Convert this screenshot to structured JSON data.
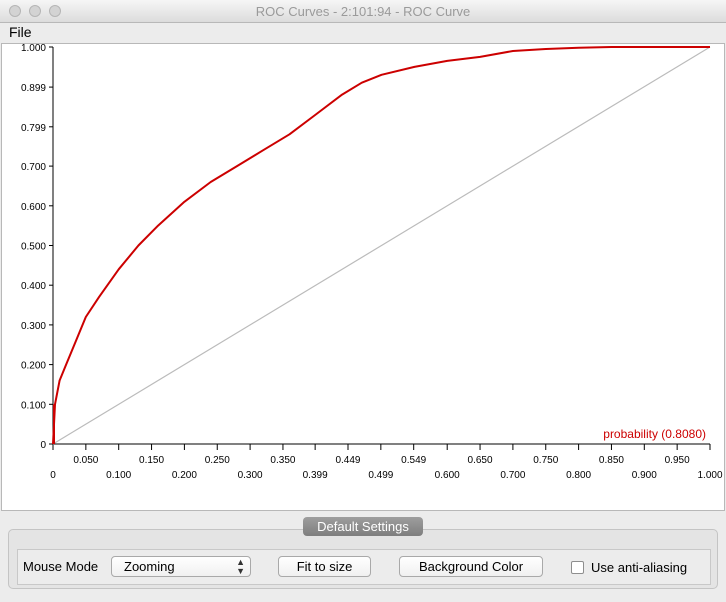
{
  "window": {
    "title": "ROC Curves - 2:101:94 - ROC Curve"
  },
  "menu": {
    "file": "File"
  },
  "chart_data": {
    "type": "line",
    "xlim": [
      0,
      1
    ],
    "ylim": [
      0,
      1
    ],
    "x_ticks": [
      "0",
      "0.050",
      "0.100",
      "0.150",
      "0.200",
      "0.250",
      "0.300",
      "0.350",
      "0.399",
      "0.449",
      "0.499",
      "0.549",
      "0.600",
      "0.650",
      "0.700",
      "0.750",
      "0.800",
      "0.850",
      "0.900",
      "0.950",
      "1.000"
    ],
    "y_ticks": [
      "0",
      "0.100",
      "0.200",
      "0.300",
      "0.400",
      "0.500",
      "0.600",
      "0.700",
      "0.799",
      "0.899",
      "1.000"
    ],
    "series": [
      {
        "name": "probability (0.8080)",
        "color": "#cc0000",
        "x": [
          0,
          0.003,
          0.01,
          0.02,
          0.035,
          0.05,
          0.07,
          0.1,
          0.13,
          0.16,
          0.2,
          0.24,
          0.28,
          0.32,
          0.36,
          0.4,
          0.44,
          0.47,
          0.5,
          0.55,
          0.6,
          0.65,
          0.7,
          0.75,
          0.8,
          0.85,
          0.9,
          0.95,
          1.0
        ],
        "y": [
          0,
          0.1,
          0.16,
          0.2,
          0.26,
          0.32,
          0.37,
          0.44,
          0.5,
          0.55,
          0.61,
          0.66,
          0.7,
          0.74,
          0.78,
          0.83,
          0.88,
          0.91,
          0.93,
          0.95,
          0.965,
          0.975,
          0.99,
          0.995,
          0.998,
          1.0,
          1.0,
          1.0,
          1.0
        ]
      },
      {
        "name": "",
        "color": "#bbbbbb",
        "x": [
          0,
          1
        ],
        "y": [
          0,
          1
        ]
      }
    ]
  },
  "settings": {
    "tab_label": "Default Settings",
    "mouse_mode_label": "Mouse Mode",
    "mouse_mode_value": "Zooming",
    "fit_to_size": "Fit to size",
    "background_color": "Background Color",
    "anti_aliasing_label": "Use anti-aliasing",
    "anti_aliasing_checked": false
  }
}
